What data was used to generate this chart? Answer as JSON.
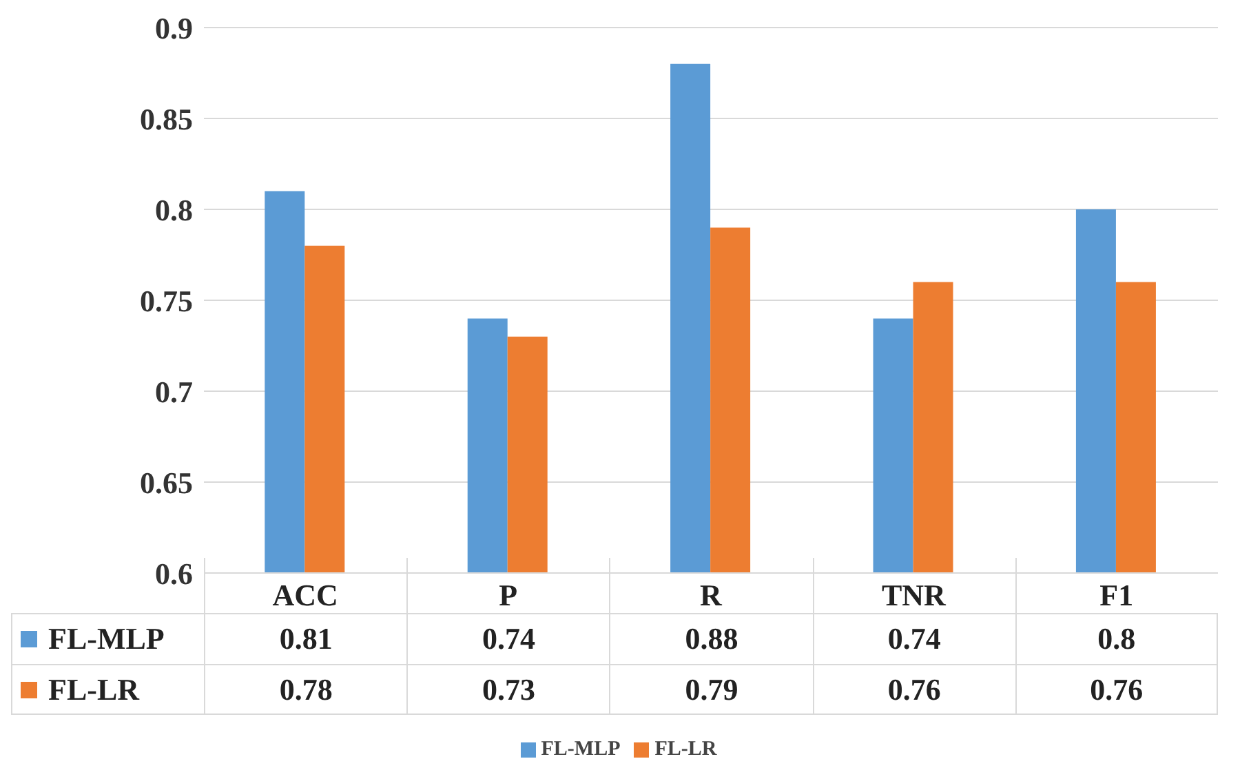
{
  "chart_data": {
    "type": "bar",
    "categories": [
      "ACC",
      "P",
      "R",
      "TNR",
      "F1"
    ],
    "series": [
      {
        "name": "FL-MLP",
        "color": "#5b9bd5",
        "values": [
          0.81,
          0.74,
          0.88,
          0.74,
          0.8
        ]
      },
      {
        "name": "FL-LR",
        "color": "#ed7d31",
        "values": [
          0.78,
          0.73,
          0.79,
          0.76,
          0.76
        ]
      }
    ],
    "ylim": [
      0.6,
      0.9
    ],
    "yticks": [
      0.6,
      0.65,
      0.7,
      0.75,
      0.8,
      0.85,
      0.9
    ],
    "grid": "y",
    "legend": "bottom",
    "data_labels": true
  }
}
